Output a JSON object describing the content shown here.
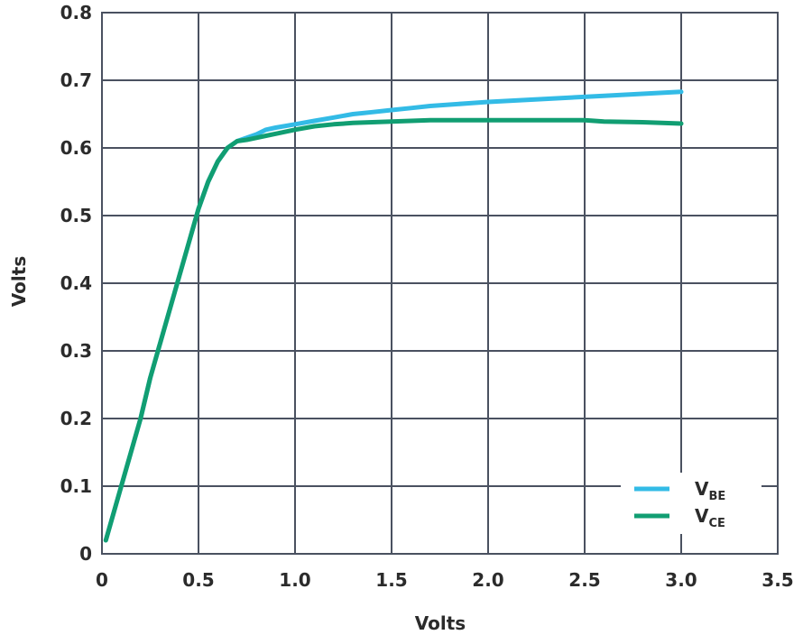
{
  "chart_data": {
    "type": "line",
    "xlabel": "Volts",
    "ylabel": "Volts",
    "xlim": [
      0,
      3.5
    ],
    "ylim": [
      0,
      0.8
    ],
    "x_ticks": [
      "0",
      "0.5",
      "1.0",
      "1.5",
      "2.0",
      "2.5",
      "3.0",
      "3.5"
    ],
    "y_ticks": [
      "0",
      "0.1",
      "0.2",
      "0.3",
      "0.4",
      "0.5",
      "0.6",
      "0.7",
      "0.8"
    ],
    "x_tick_values": [
      0,
      0.5,
      1.0,
      1.5,
      2.0,
      2.5,
      3.0,
      3.5
    ],
    "y_tick_values": [
      0,
      0.1,
      0.2,
      0.3,
      0.4,
      0.5,
      0.6,
      0.7,
      0.8
    ],
    "grid": true,
    "legend_position": "bottom-right",
    "series": [
      {
        "name": "V_BE",
        "label_main": "V",
        "label_sub": "BE",
        "color": "#33bbe6",
        "x": [
          0.02,
          0.05,
          0.1,
          0.15,
          0.2,
          0.25,
          0.3,
          0.35,
          0.4,
          0.45,
          0.5,
          0.55,
          0.6,
          0.65,
          0.7,
          0.75,
          0.8,
          0.85,
          0.9,
          1.0,
          1.1,
          1.2,
          1.3,
          1.4,
          1.5,
          1.6,
          1.7,
          1.8,
          1.9,
          2.0,
          2.2,
          2.4,
          2.6,
          2.8,
          3.0
        ],
        "y": [
          0.02,
          0.05,
          0.1,
          0.15,
          0.2,
          0.26,
          0.31,
          0.36,
          0.41,
          0.46,
          0.51,
          0.55,
          0.58,
          0.6,
          0.61,
          0.615,
          0.62,
          0.627,
          0.63,
          0.635,
          0.64,
          0.645,
          0.65,
          0.653,
          0.656,
          0.659,
          0.662,
          0.664,
          0.666,
          0.668,
          0.671,
          0.674,
          0.677,
          0.68,
          0.683
        ]
      },
      {
        "name": "V_CE",
        "label_main": "V",
        "label_sub": "CE",
        "color": "#119e72",
        "x": [
          0.02,
          0.05,
          0.1,
          0.15,
          0.2,
          0.25,
          0.3,
          0.35,
          0.4,
          0.45,
          0.5,
          0.55,
          0.6,
          0.65,
          0.7,
          0.75,
          0.8,
          0.85,
          0.9,
          1.0,
          1.1,
          1.2,
          1.3,
          1.4,
          1.5,
          1.6,
          1.7,
          1.8,
          1.9,
          2.0,
          2.2,
          2.4,
          2.5,
          2.6,
          2.8,
          3.0
        ],
        "y": [
          0.02,
          0.05,
          0.1,
          0.15,
          0.2,
          0.26,
          0.31,
          0.36,
          0.41,
          0.46,
          0.51,
          0.55,
          0.58,
          0.6,
          0.61,
          0.612,
          0.615,
          0.618,
          0.621,
          0.627,
          0.632,
          0.635,
          0.637,
          0.638,
          0.639,
          0.64,
          0.641,
          0.641,
          0.641,
          0.641,
          0.641,
          0.641,
          0.641,
          0.639,
          0.638,
          0.636
        ]
      }
    ]
  }
}
